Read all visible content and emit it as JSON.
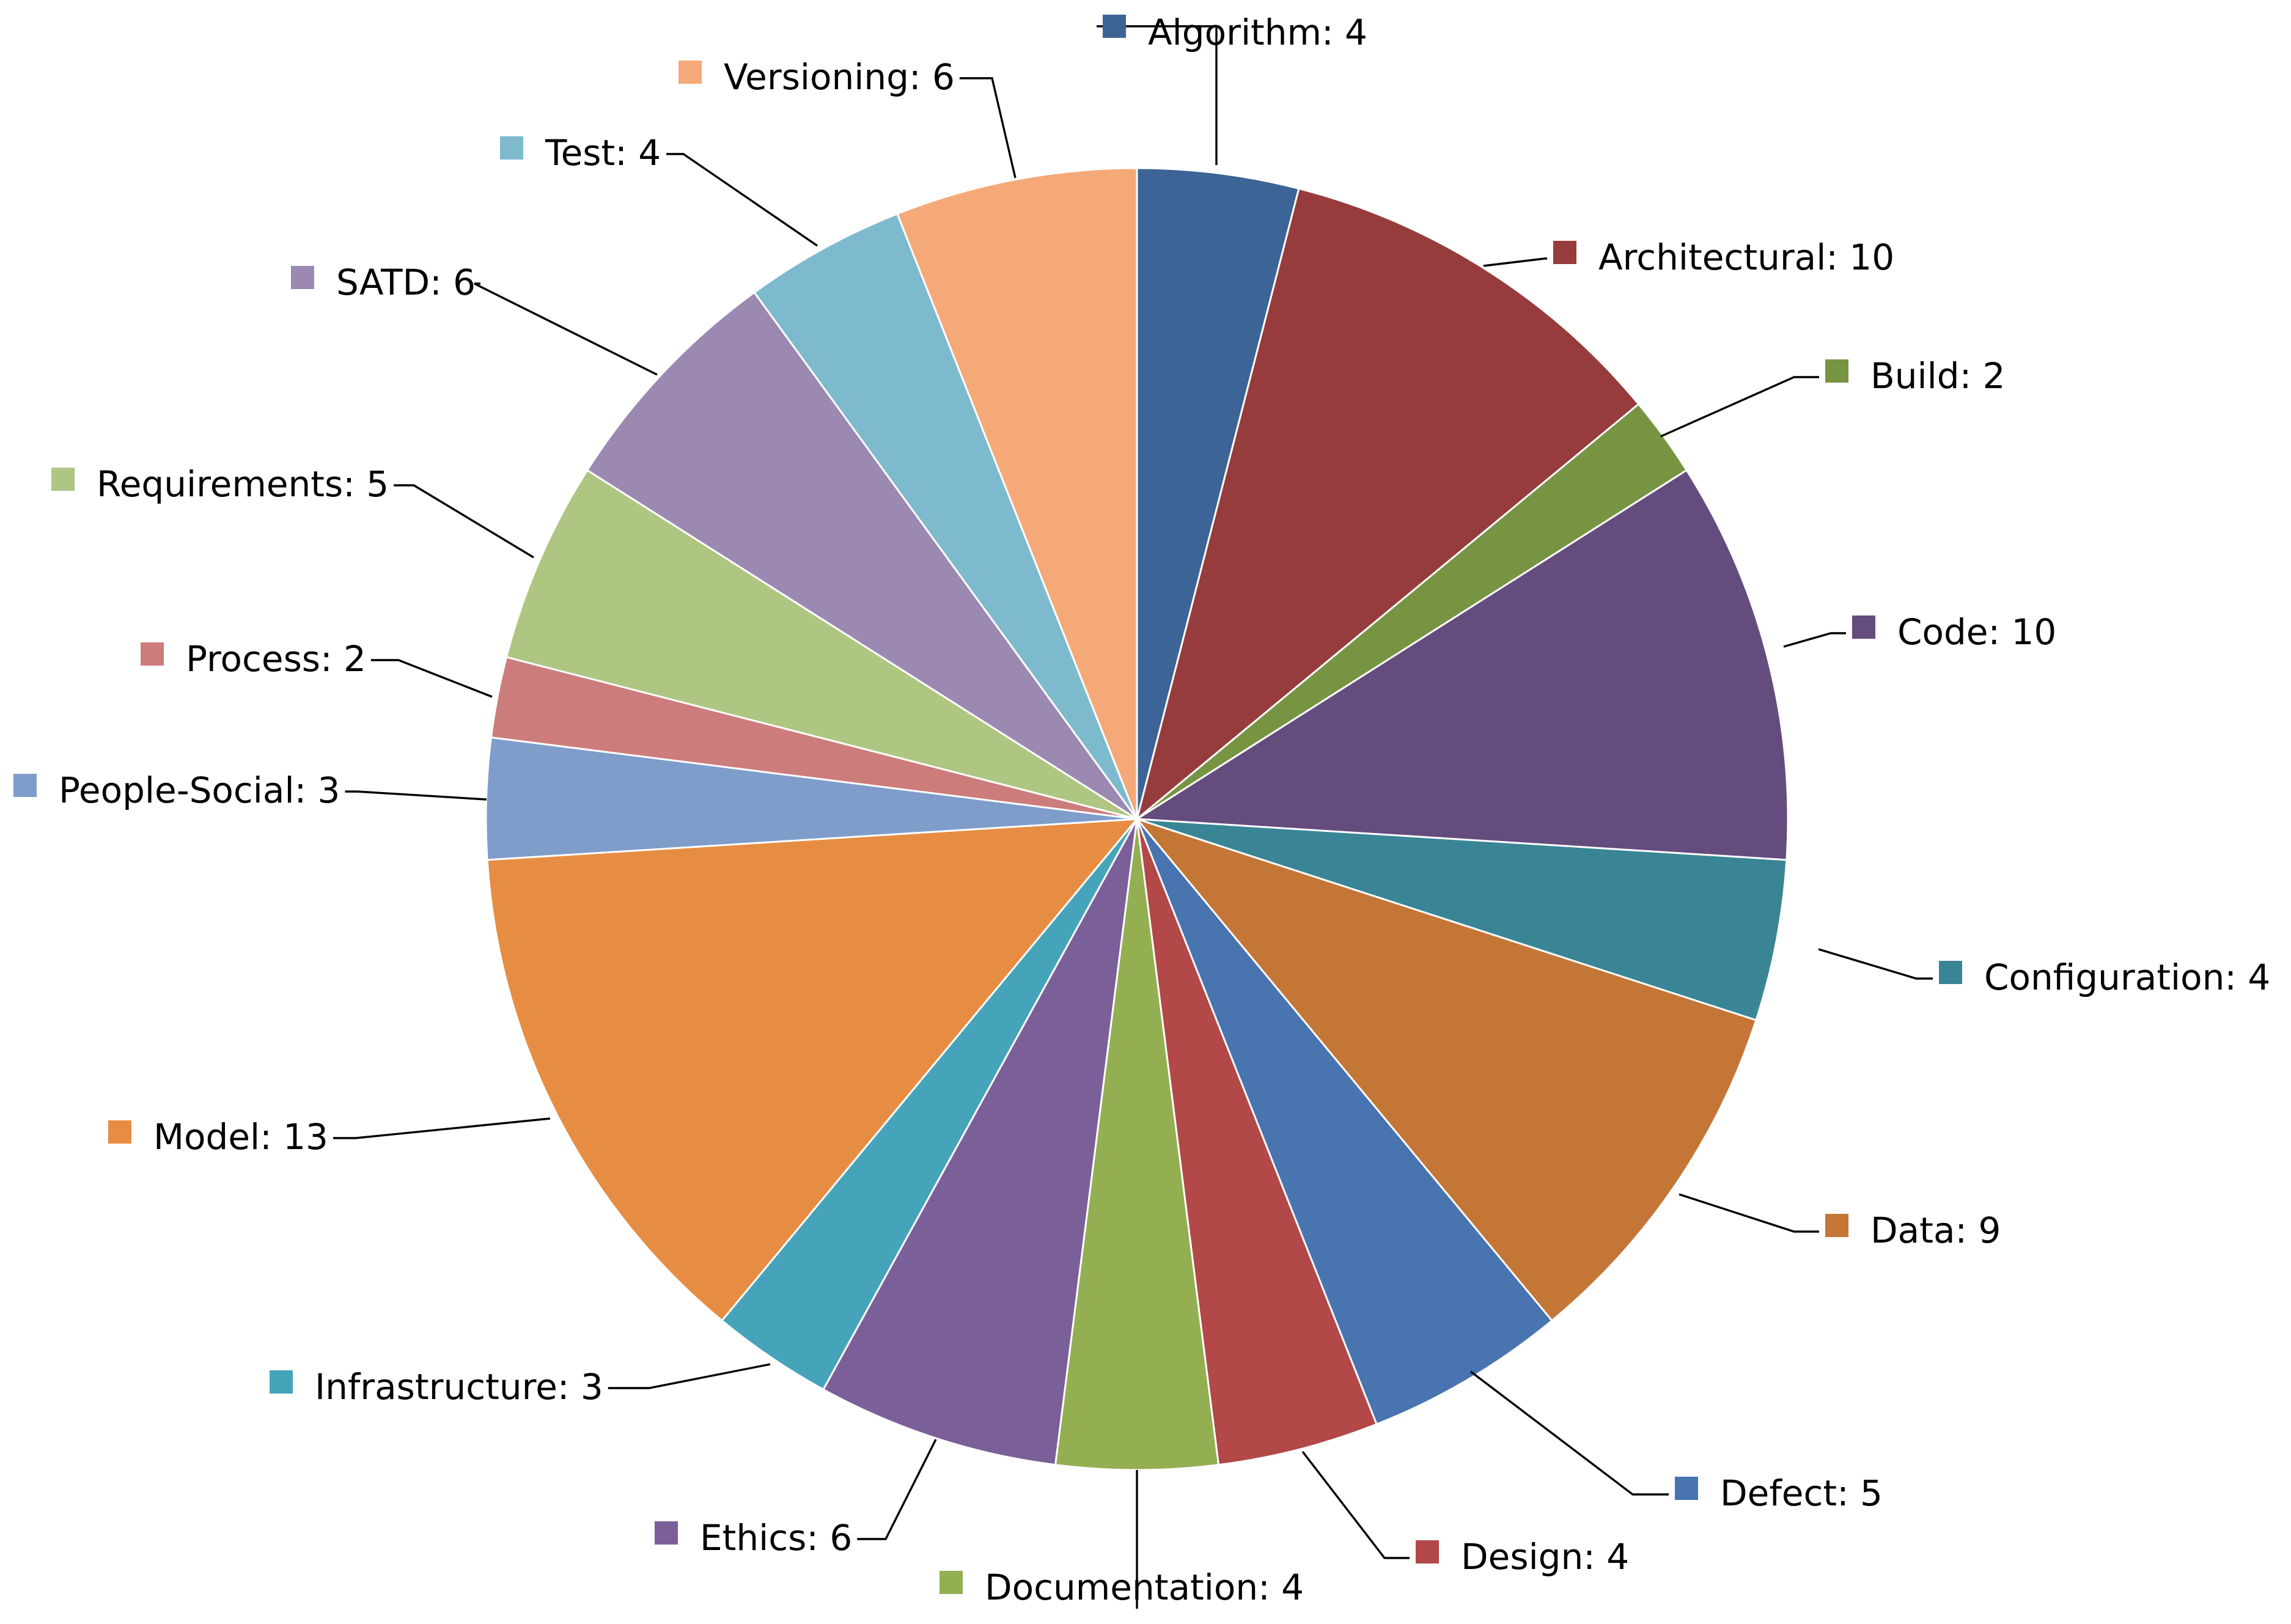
{
  "chart_data": {
    "type": "pie",
    "title": "",
    "slices": [
      {
        "label": "Algorithm",
        "text": "Algorithm: 4",
        "value": 4,
        "color": "#3C6496"
      },
      {
        "label": "Architectural",
        "text": "Architectural: 10",
        "value": 10,
        "color": "#963C3C"
      },
      {
        "label": "Build",
        "text": "Build: 2",
        "value": 2,
        "color": "#779443"
      },
      {
        "label": "Code",
        "text": "Code: 10",
        "value": 10,
        "color": "#644C7E"
      },
      {
        "label": "Configuration",
        "text": "Configuration: 4",
        "value": 4,
        "color": "#398596"
      },
      {
        "label": "Data",
        "text": "Data: 9",
        "value": 9,
        "color": "#C47637"
      },
      {
        "label": "Defect",
        "text": "Defect:  5",
        "value": 5,
        "color": "#4874B0"
      },
      {
        "label": "Design",
        "text": "Design: 4",
        "value": 4,
        "color": "#B24848"
      },
      {
        "label": "Documentation",
        "text": "Documentation: 4",
        "value": 4,
        "color": "#93AF52"
      },
      {
        "label": "Ethics",
        "text": "Ethics: 6",
        "value": 6,
        "color": "#7B5F99"
      },
      {
        "label": "Infrastructure",
        "text": "Infrastructure: 3",
        "value": 3,
        "color": "#46A4BA"
      },
      {
        "label": "Model",
        "text": "Model:  13",
        "value": 13,
        "color": "#E68D43"
      },
      {
        "label": "People-Social",
        "text": "People-Social: 3",
        "value": 3,
        "color": "#7F9DCB"
      },
      {
        "label": "Process",
        "text": "Process: 2",
        "value": 2,
        "color": "#CD7C7C"
      },
      {
        "label": "Requirements",
        "text": "Requirements:  5",
        "value": 5,
        "color": "#AEC682"
      },
      {
        "label": "SATD",
        "text": "SATD:  6",
        "value": 6,
        "color": "#9C89B2"
      },
      {
        "label": "Test",
        "text": "Test:  4",
        "value": 4,
        "color": "#7EBACD"
      },
      {
        "label": "Versioning",
        "text": "Versioning: 6",
        "value": 6,
        "color": "#F5A978"
      }
    ],
    "legend": "none",
    "start_angle": "12 o'clock, clockwise"
  }
}
